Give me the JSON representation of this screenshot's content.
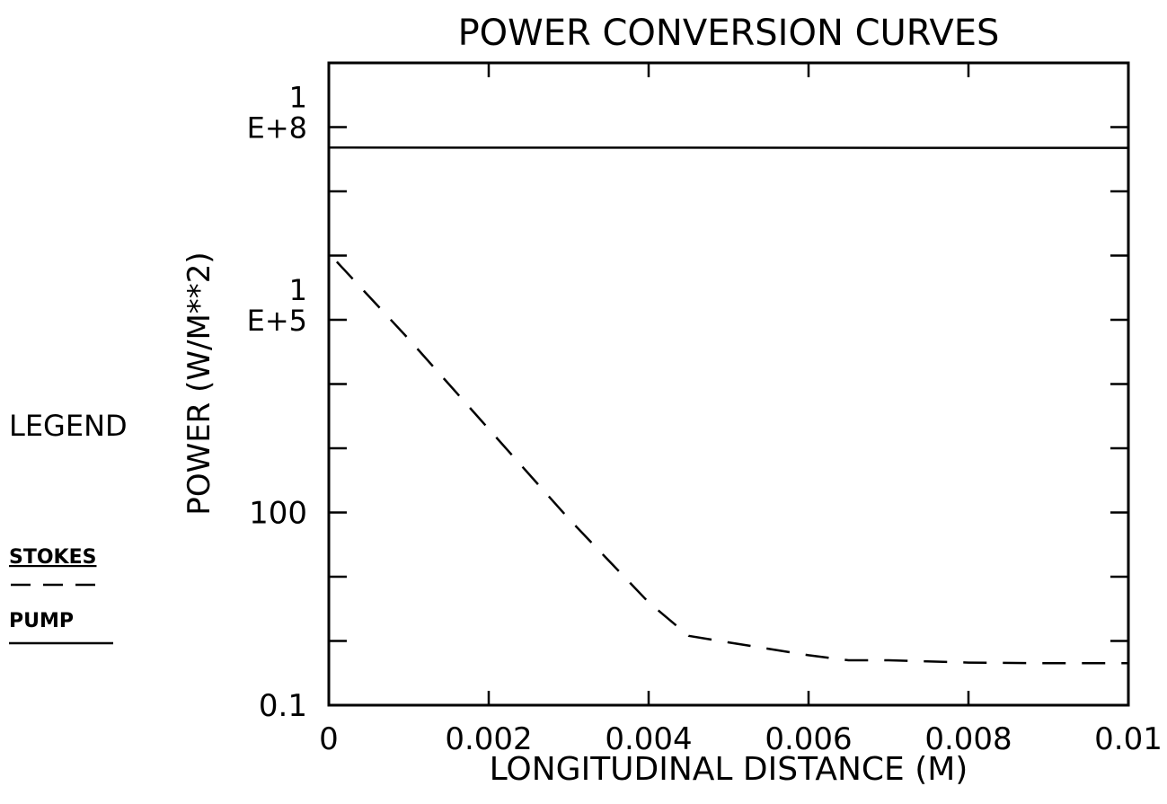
{
  "chart_data": {
    "type": "line",
    "title": "POWER CONVERSION CURVES",
    "xlabel": "LONGITUDINAL DISTANCE (M)",
    "ylabel": "POWER (W/M**2)",
    "xlim": [
      0,
      0.01
    ],
    "ylim": [
      0.1,
      1000000000
    ],
    "yscale": "log",
    "x_ticks": [
      0,
      0.002,
      0.004,
      0.006,
      0.008,
      0.01
    ],
    "x_tick_labels": [
      "0",
      "0.002",
      "0.004",
      "0.006",
      "0.008",
      "0.01"
    ],
    "y_ticks": [
      0.1,
      1,
      10,
      100,
      1000,
      10000,
      100000,
      1000000,
      10000000,
      100000000,
      1000000000
    ],
    "y_tick_labels": [
      {
        "value": 0.1,
        "lines": [
          "0.1"
        ]
      },
      {
        "value": 100,
        "lines": [
          "100"
        ]
      },
      {
        "value": 100000,
        "lines": [
          "1",
          "E+5"
        ]
      },
      {
        "value": 100000000,
        "lines": [
          "1",
          "E+8"
        ]
      }
    ],
    "grid": false,
    "legend": {
      "title": "LEGEND",
      "position": "left",
      "entries": [
        {
          "label": "STOKES",
          "style": "dashed"
        },
        {
          "label": "PUMP",
          "style": "solid"
        }
      ]
    },
    "series": [
      {
        "name": "STOKES",
        "style": "dashed",
        "x": [
          0.0001,
          0.001,
          0.002,
          0.003,
          0.004,
          0.0045,
          0.005,
          0.006,
          0.0065,
          0.007,
          0.008,
          0.009,
          0.01
        ],
        "y": [
          800000,
          50000,
          2000,
          80,
          4,
          1.2,
          0.95,
          0.6,
          0.5,
          0.5,
          0.46,
          0.45,
          0.45
        ]
      },
      {
        "name": "PUMP",
        "style": "solid",
        "x": [
          0,
          0.002,
          0.004,
          0.006,
          0.008,
          0.01
        ],
        "y": [
          48000000,
          47900000,
          47800000,
          47700000,
          47600000,
          47500000
        ]
      }
    ]
  }
}
